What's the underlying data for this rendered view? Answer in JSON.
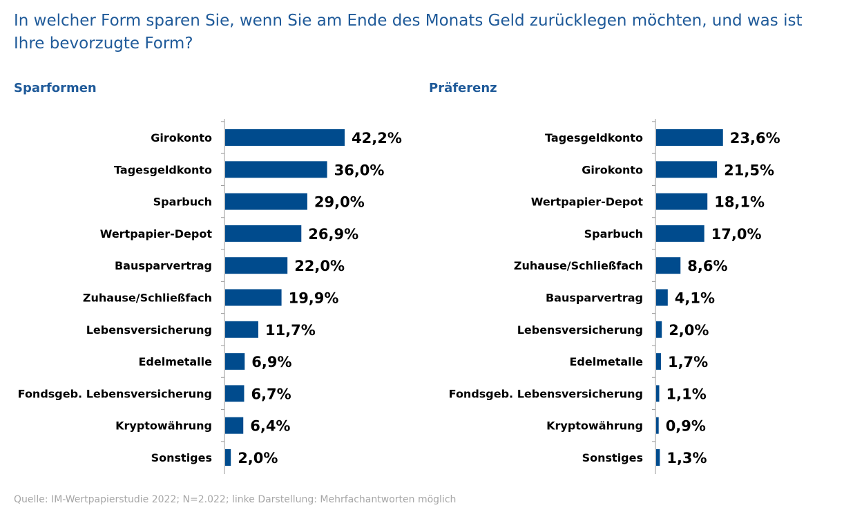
{
  "title": "In welcher Form sparen Sie, wenn Sie am Ende des Monats Geld zurücklegen möchten, und was ist Ihre bevorzugte Form?",
  "left_subtitle": "Sparformen",
  "right_subtitle": "Präferenz",
  "source": "Quelle: IM-Wertpapierstudie 2022; N=2.022; linke Darstellung: Mehrfachantworten möglich",
  "colors": {
    "bar": "#004b8d",
    "title": "#1f5a99",
    "source": "#a6a6a6",
    "axis": "#999999"
  },
  "chart_data": [
    {
      "type": "bar",
      "orientation": "horizontal",
      "title": "Sparformen",
      "categories": [
        "Girokonto",
        "Tagesgeldkonto",
        "Sparbuch",
        "Wertpapier-Depot",
        "Bausparvertrag",
        "Zuhause/Schließfach",
        "Lebensversicherung",
        "Edelmetalle",
        "Fondsgeb. Lebensversicherung",
        "Kryptowährung",
        "Sonstiges"
      ],
      "values": [
        42.2,
        36.0,
        29.0,
        26.9,
        22.0,
        19.9,
        11.7,
        6.9,
        6.7,
        6.4,
        2.0
      ],
      "labels": [
        "42,2%",
        "36,0%",
        "29,0%",
        "26,9%",
        "22,0%",
        "19,9%",
        "11,7%",
        "6,9%",
        "6,7%",
        "6,4%",
        "2,0%"
      ],
      "unit": "%",
      "xlim": [
        0,
        50
      ],
      "grid": false
    },
    {
      "type": "bar",
      "orientation": "horizontal",
      "title": "Präferenz",
      "categories": [
        "Tagesgeldkonto",
        "Girokonto",
        "Wertpapier-Depot",
        "Sparbuch",
        "Zuhause/Schließfach",
        "Bausparvertrag",
        "Lebensversicherung",
        "Edelmetalle",
        "Fondsgeb. Lebensversicherung",
        "Kryptowährung",
        "Sonstiges"
      ],
      "values": [
        23.6,
        21.5,
        18.1,
        17.0,
        8.6,
        4.1,
        2.0,
        1.7,
        1.1,
        0.9,
        1.3
      ],
      "labels": [
        "23,6%",
        "21,5%",
        "18,1%",
        "17,0%",
        "8,6%",
        "4,1%",
        "2,0%",
        "1,7%",
        "1,1%",
        "0,9%",
        "1,3%"
      ],
      "unit": "%",
      "xlim": [
        0,
        50
      ],
      "grid": false
    }
  ]
}
